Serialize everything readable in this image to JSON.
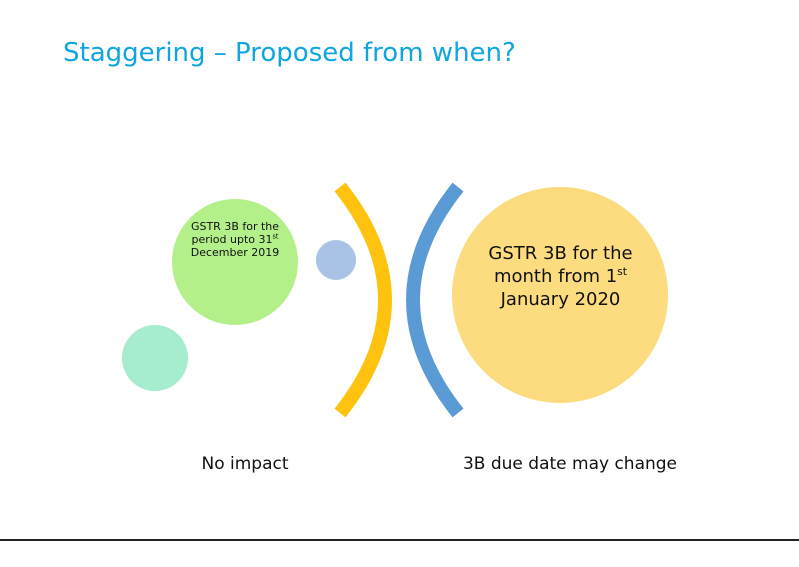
{
  "title": "Staggering – Proposed from when?",
  "left_circle": {
    "text_before": "GSTR 3B for the period upto 31",
    "superscript": "st",
    "text_after": "December 2019"
  },
  "right_circle": {
    "text_before": "GSTR 3B for the month from 1",
    "superscript": "st",
    "text_after": "January 2020"
  },
  "captions": [
    "No impact",
    "3B due date may change"
  ]
}
